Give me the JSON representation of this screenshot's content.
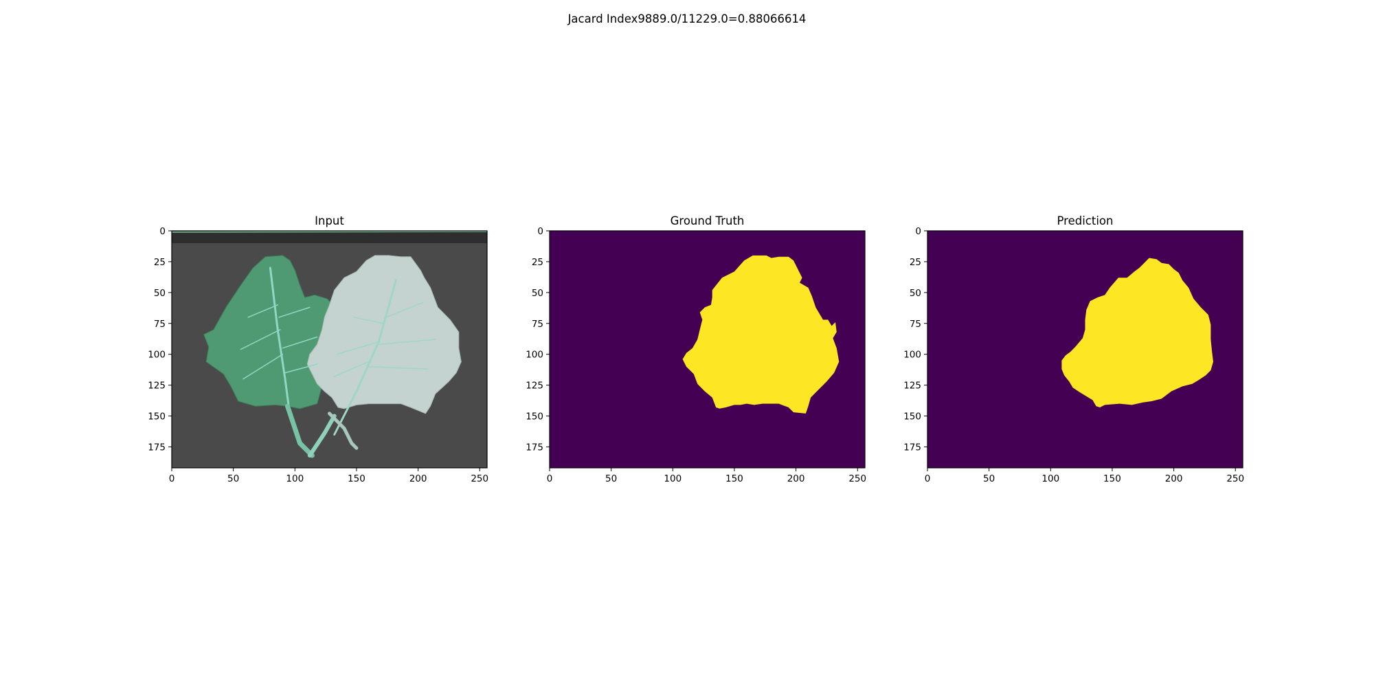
{
  "figure": {
    "suptitle": "Jacard Index9889.0/11229.0=0.88066614"
  },
  "colors": {
    "background_class": "#440154",
    "foreground_class": "#fde725",
    "photo_background": "#4a4a4a",
    "healthy_leaf": "#4f9a72",
    "diseased_leaf": "#c4d3cf",
    "leaf_vein": "#8fd8c4"
  },
  "chart_data": [
    {
      "type": "heatmap",
      "title": "Input",
      "content": "rgb-photo",
      "image_width": 256,
      "image_height": 192,
      "xlim": [
        0,
        256
      ],
      "ylim": [
        192,
        0
      ],
      "x_ticks": [
        0,
        50,
        100,
        150,
        200,
        250
      ],
      "y_ticks": [
        0,
        25,
        50,
        75,
        100,
        125,
        150,
        175
      ]
    },
    {
      "type": "heatmap",
      "title": "Ground Truth",
      "content": "binary-mask",
      "classes": [
        0,
        1
      ],
      "image_width": 256,
      "image_height": 192,
      "xlim": [
        0,
        256
      ],
      "ylim": [
        192,
        0
      ],
      "x_ticks": [
        0,
        50,
        100,
        150,
        200,
        250
      ],
      "y_ticks": [
        0,
        25,
        50,
        75,
        100,
        125,
        150,
        175
      ],
      "mask_outline": [
        [
          132,
          48
        ],
        [
          140,
          38
        ],
        [
          150,
          33
        ],
        [
          158,
          24
        ],
        [
          165,
          20
        ],
        [
          176,
          20
        ],
        [
          180,
          22
        ],
        [
          186,
          21
        ],
        [
          194,
          21
        ],
        [
          198,
          24
        ],
        [
          202,
          32
        ],
        [
          205,
          38
        ],
        [
          203,
          42
        ],
        [
          210,
          46
        ],
        [
          213,
          53
        ],
        [
          216,
          62
        ],
        [
          222,
          72
        ],
        [
          226,
          72
        ],
        [
          229,
          77
        ],
        [
          232,
          74
        ],
        [
          233,
          82
        ],
        [
          230,
          87
        ],
        [
          233,
          95
        ],
        [
          235,
          106
        ],
        [
          231,
          115
        ],
        [
          225,
          122
        ],
        [
          218,
          129
        ],
        [
          212,
          135
        ],
        [
          210,
          142
        ],
        [
          208,
          148
        ],
        [
          198,
          147
        ],
        [
          194,
          143
        ],
        [
          186,
          140
        ],
        [
          173,
          140
        ],
        [
          166,
          141
        ],
        [
          160,
          140
        ],
        [
          155,
          141
        ],
        [
          150,
          141
        ],
        [
          143,
          143
        ],
        [
          138,
          144
        ],
        [
          135,
          143
        ],
        [
          132,
          135
        ],
        [
          126,
          130
        ],
        [
          120,
          124
        ],
        [
          117,
          116
        ],
        [
          111,
          110
        ],
        [
          108,
          104
        ],
        [
          111,
          99
        ],
        [
          116,
          95
        ],
        [
          120,
          88
        ],
        [
          122,
          80
        ],
        [
          124,
          72
        ],
        [
          122,
          66
        ],
        [
          126,
          62
        ],
        [
          131,
          60
        ],
        [
          132,
          54
        ]
      ]
    },
    {
      "type": "heatmap",
      "title": "Prediction",
      "content": "binary-mask",
      "classes": [
        0,
        1
      ],
      "image_width": 256,
      "image_height": 192,
      "xlim": [
        0,
        256
      ],
      "ylim": [
        192,
        0
      ],
      "x_ticks": [
        0,
        50,
        100,
        150,
        200,
        250
      ],
      "y_ticks": [
        0,
        25,
        50,
        75,
        100,
        125,
        150,
        175
      ],
      "mask_outline": [
        [
          148,
          46
        ],
        [
          155,
          38
        ],
        [
          162,
          38
        ],
        [
          168,
          33
        ],
        [
          172,
          30
        ],
        [
          176,
          26
        ],
        [
          180,
          22
        ],
        [
          186,
          23
        ],
        [
          190,
          26
        ],
        [
          196,
          27
        ],
        [
          200,
          31
        ],
        [
          204,
          34
        ],
        [
          207,
          40
        ],
        [
          212,
          46
        ],
        [
          216,
          55
        ],
        [
          222,
          62
        ],
        [
          228,
          68
        ],
        [
          230,
          76
        ],
        [
          230,
          88
        ],
        [
          231,
          98
        ],
        [
          232,
          106
        ],
        [
          230,
          113
        ],
        [
          226,
          117
        ],
        [
          220,
          121
        ],
        [
          215,
          124
        ],
        [
          207,
          126
        ],
        [
          198,
          130
        ],
        [
          190,
          136
        ],
        [
          182,
          138
        ],
        [
          175,
          139
        ],
        [
          166,
          141
        ],
        [
          156,
          140
        ],
        [
          144,
          141
        ],
        [
          140,
          143
        ],
        [
          137,
          142
        ],
        [
          134,
          137
        ],
        [
          124,
          131
        ],
        [
          118,
          127
        ],
        [
          115,
          122
        ],
        [
          111,
          117
        ],
        [
          109,
          112
        ],
        [
          109,
          105
        ],
        [
          112,
          101
        ],
        [
          116,
          98
        ],
        [
          120,
          94
        ],
        [
          126,
          87
        ],
        [
          128,
          80
        ],
        [
          128,
          72
        ],
        [
          129,
          64
        ],
        [
          132,
          57
        ],
        [
          138,
          54
        ],
        [
          144,
          52
        ]
      ]
    }
  ]
}
